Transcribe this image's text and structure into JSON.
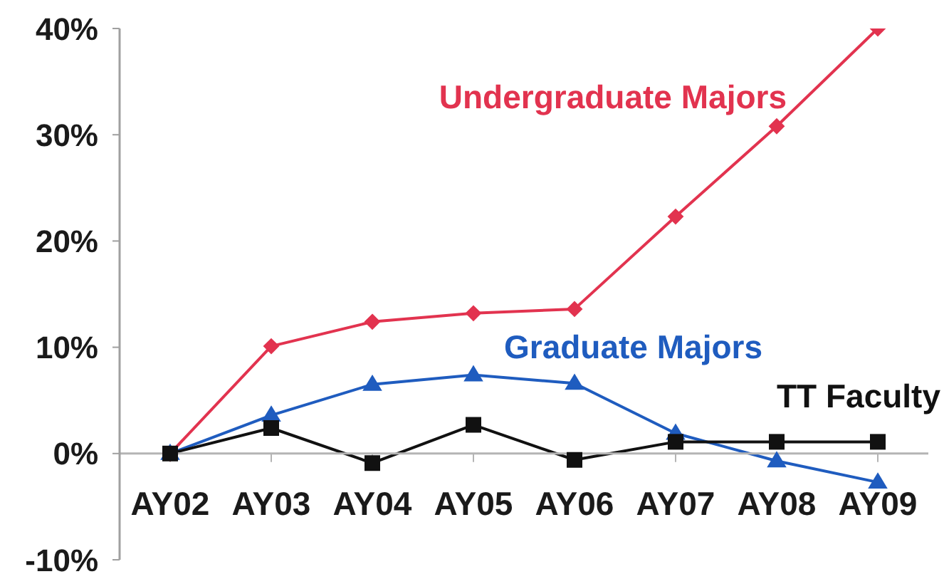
{
  "chart_data": {
    "type": "line",
    "categories": [
      "AY02",
      "AY03",
      "AY04",
      "AY05",
      "AY06",
      "AY07",
      "AY08",
      "AY09"
    ],
    "series": [
      {
        "name": "Undergraduate Majors",
        "color": "#e2334f",
        "marker": "diamond",
        "values": [
          0,
          10.1,
          12.4,
          13.2,
          13.6,
          22.3,
          30.8,
          40
        ]
      },
      {
        "name": "Graduate Majors",
        "color": "#1f5cbf",
        "marker": "triangle",
        "values": [
          0,
          3.6,
          6.5,
          7.4,
          6.6,
          1.9,
          -0.7,
          -2.7
        ]
      },
      {
        "name": "TT Faculty",
        "color": "#111111",
        "marker": "square",
        "values": [
          0,
          2.4,
          -0.9,
          2.7,
          -0.6,
          1.1,
          1.1,
          1.1
        ]
      }
    ],
    "ylim": [
      -10,
      40
    ],
    "yticks": [
      {
        "value": -10,
        "label": "-10%"
      },
      {
        "value": 0,
        "label": "0%"
      },
      {
        "value": 10,
        "label": "10%"
      },
      {
        "value": 20,
        "label": "20%"
      },
      {
        "value": 30,
        "label": "30%"
      },
      {
        "value": 40,
        "label": "40%"
      }
    ]
  }
}
